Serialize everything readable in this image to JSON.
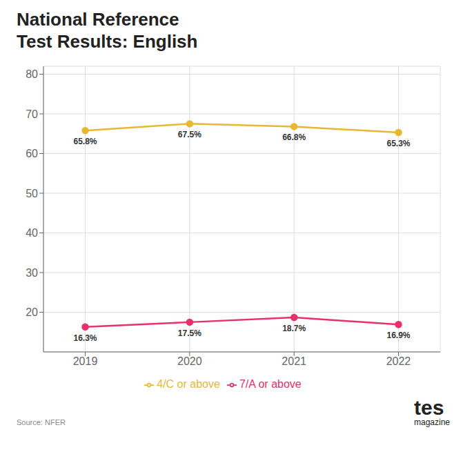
{
  "chart_data": {
    "type": "line",
    "title": "National Reference\nTest Results: English",
    "x": [
      2019,
      2020,
      2021,
      2022
    ],
    "xlim": [
      2018.6,
      2022.4
    ],
    "xticks": [
      2019,
      2020,
      2021,
      2022
    ],
    "ylim": [
      10,
      82
    ],
    "yticks": [
      20,
      30,
      40,
      50,
      60,
      70,
      80
    ],
    "grid": true,
    "legend": "bottom",
    "data_labels": true,
    "marker": "circle",
    "series": [
      {
        "name": "4/C or above",
        "color": "#e8b830",
        "values": [
          65.8,
          67.5,
          66.8,
          65.3
        ],
        "value_labels": [
          "65.8%",
          "67.5%",
          "66.8%",
          "65.3%"
        ]
      },
      {
        "name": "7/A or above",
        "color": "#e8306a",
        "values": [
          16.3,
          17.5,
          18.7,
          16.9
        ],
        "value_labels": [
          "16.3%",
          "17.5%",
          "18.7%",
          "16.9%"
        ]
      }
    ],
    "annotations": [
      "Source: NFER",
      "tes",
      "magazine"
    ]
  }
}
